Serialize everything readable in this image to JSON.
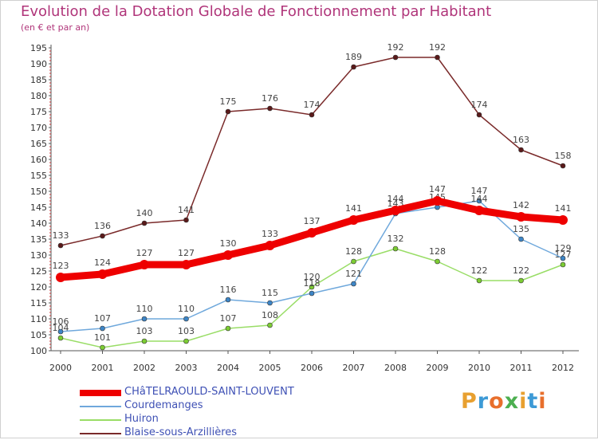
{
  "title": "Evolution de la Dotation Globale de Fonctionnement par Habitant",
  "subtitle": "(en € et par an)",
  "logo": {
    "text": "Proxiti",
    "letter_colors": [
      "#e8a030",
      "#3d9ad6",
      "#e86f2c",
      "#4caf50",
      "#e8a030",
      "#3d9ad6",
      "#e86f2c"
    ]
  },
  "colors": {
    "title": "#b0357a",
    "legend_text": "#3f51b5",
    "axis": "#555555",
    "minor_tick": "#cc3333",
    "grid": "#e8e8e8"
  },
  "chart_data": {
    "type": "line",
    "x": [
      2000,
      2001,
      2002,
      2003,
      2004,
      2005,
      2006,
      2007,
      2008,
      2009,
      2010,
      2011,
      2012
    ],
    "ylim": [
      100,
      195
    ],
    "yticks": [
      100,
      105,
      110,
      115,
      120,
      125,
      130,
      135,
      140,
      145,
      150,
      155,
      160,
      165,
      170,
      175,
      180,
      185,
      190,
      195
    ],
    "grid": false,
    "legend_position": "bottom-left",
    "series": [
      {
        "name": "Blaise-sous-Arzillières",
        "color": "#7a2a2a",
        "marker": "#5a1a1a",
        "width": "thin",
        "values": [
          133,
          136,
          140,
          141,
          175,
          176,
          174,
          189,
          192,
          192,
          174,
          163,
          158
        ]
      },
      {
        "name": "Huiron",
        "color": "#99dd66",
        "marker": "#7ccc33",
        "width": "thin",
        "values": [
          104,
          101,
          103,
          103,
          107,
          108,
          120,
          128,
          132,
          128,
          122,
          122,
          127
        ]
      },
      {
        "name": "Courdemanges",
        "color": "#6fa8dc",
        "marker": "#3d85c6",
        "width": "thin",
        "values": [
          106,
          107,
          110,
          110,
          116,
          115,
          118,
          121,
          143,
          145,
          147,
          135,
          129
        ]
      },
      {
        "name": "CHâTELRAOULD-SAINT-LOUVENT",
        "color": "#ee0000",
        "marker": "#ee0000",
        "width": "thick",
        "values": [
          123,
          124,
          127,
          127,
          130,
          133,
          137,
          141,
          144,
          147,
          144,
          142,
          141
        ]
      }
    ],
    "legend_order": [
      "CHâTELRAOULD-SAINT-LOUVENT",
      "Courdemanges",
      "Huiron",
      "Blaise-sous-Arzillières"
    ]
  }
}
